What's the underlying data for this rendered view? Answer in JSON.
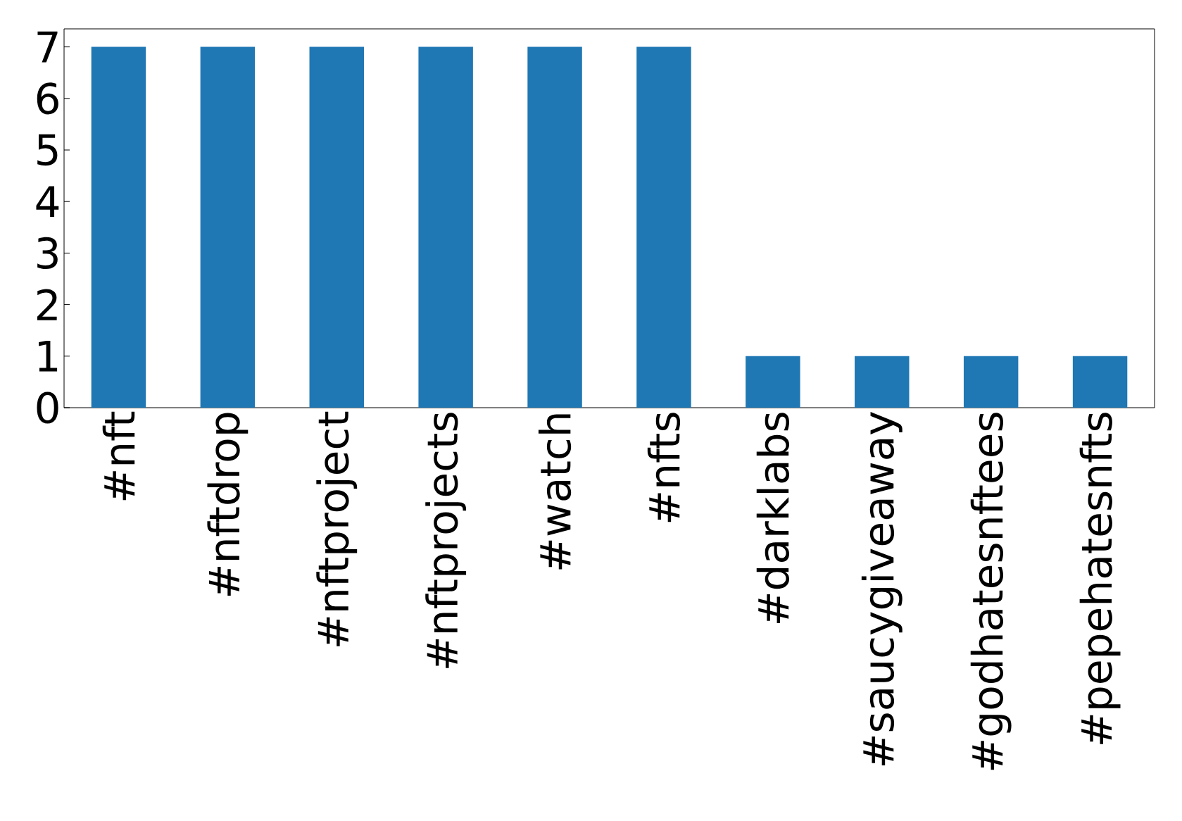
{
  "chart_data": {
    "type": "bar",
    "categories": [
      "#nft",
      "#nftdrop",
      "#nftproject",
      "#nftprojects",
      "#watch",
      "#nfts",
      "#darklabs",
      "#saucygiveaway",
      "#godhatesnftees",
      "#pepehatesnfts"
    ],
    "values": [
      7,
      7,
      7,
      7,
      7,
      7,
      1,
      1,
      1,
      1
    ],
    "color": "#1f77b4",
    "ylim": [
      0,
      7.35
    ],
    "yticks": [
      0,
      1,
      2,
      3,
      4,
      5,
      6,
      7
    ]
  }
}
